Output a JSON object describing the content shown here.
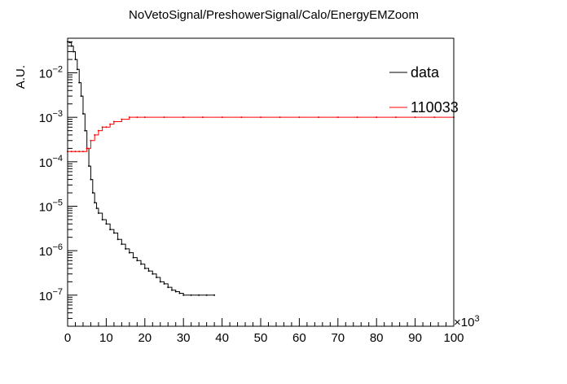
{
  "chart_data": {
    "type": "line",
    "title": "NoVetoSignal/PreshowerSignal/Calo/EnergyEMZoom",
    "ylabel": "A.U.",
    "xlabel": "",
    "x_multiplier_label": "×10",
    "x_multiplier_exp": "3",
    "xlim": [
      0,
      100000
    ],
    "ylim": [
      2e-08,
      0.06
    ],
    "yscale": "log",
    "grid": false,
    "legend_position": "top-right",
    "x_ticks": [
      {
        "value": 0,
        "label": "0"
      },
      {
        "value": 10000,
        "label": "10"
      },
      {
        "value": 20000,
        "label": "20"
      },
      {
        "value": 30000,
        "label": "30"
      },
      {
        "value": 40000,
        "label": "40"
      },
      {
        "value": 50000,
        "label": "50"
      },
      {
        "value": 60000,
        "label": "60"
      },
      {
        "value": 70000,
        "label": "70"
      },
      {
        "value": 80000,
        "label": "80"
      },
      {
        "value": 90000,
        "label": "90"
      },
      {
        "value": 100000,
        "label": "100"
      }
    ],
    "y_ticks": [
      {
        "value": 1e-07,
        "base": "10",
        "exp": "−7"
      },
      {
        "value": 1e-06,
        "base": "10",
        "exp": "−6"
      },
      {
        "value": 1e-05,
        "base": "10",
        "exp": "−5"
      },
      {
        "value": 0.0001,
        "base": "10",
        "exp": "−4"
      },
      {
        "value": 0.001,
        "base": "10",
        "exp": "−3"
      },
      {
        "value": 0.01,
        "base": "10",
        "exp": "−2"
      }
    ],
    "series": [
      {
        "name": "data",
        "color": "#000000",
        "x": [
          0,
          500,
          1000,
          1500,
          2000,
          2500,
          3000,
          3500,
          4000,
          4500,
          5000,
          5500,
          6000,
          6500,
          7000,
          7500,
          8000,
          9000,
          10000,
          11000,
          12000,
          13000,
          14000,
          15000,
          16000,
          17000,
          18000,
          19000,
          20000,
          21000,
          22000,
          23000,
          24000,
          25000,
          26000,
          27000,
          28000,
          29000,
          30000,
          32000,
          34000,
          36000,
          38000
        ],
        "values": [
          0.05,
          0.048,
          0.04,
          0.03,
          0.02,
          0.012,
          0.006,
          0.003,
          0.0012,
          0.0005,
          0.0002,
          8e-05,
          4e-05,
          2e-05,
          1.2e-05,
          9e-06,
          7e-06,
          5e-06,
          4e-06,
          3e-06,
          2.5e-06,
          1.8e-06,
          1.4e-06,
          1.1e-06,
          9e-07,
          7e-07,
          6e-07,
          5e-07,
          4e-07,
          3.5e-07,
          3e-07,
          2.5e-07,
          2e-07,
          1.8e-07,
          1.5e-07,
          1.3e-07,
          1.2e-07,
          1.1e-07,
          1e-07,
          1e-07,
          1e-07,
          1e-07,
          1e-07
        ]
      },
      {
        "name": "110033",
        "color": "#ff0000",
        "x": [
          0,
          1000,
          2000,
          3000,
          4000,
          5000,
          6000,
          7000,
          8000,
          9000,
          10000,
          11000,
          12000,
          14000,
          16000,
          18000,
          20000,
          25000,
          30000,
          35000,
          40000,
          45000,
          50000,
          55000,
          60000,
          65000,
          70000,
          75000,
          80000,
          85000,
          90000,
          95000,
          100000
        ],
        "values": [
          0.00017,
          0.00017,
          0.00017,
          0.00017,
          0.00017,
          0.0002,
          0.0003,
          0.0004,
          0.0005,
          0.0006,
          0.0006,
          0.0007,
          0.0008,
          0.0009,
          0.001,
          0.001,
          0.001,
          0.001,
          0.001,
          0.001,
          0.001,
          0.001,
          0.001,
          0.001,
          0.001,
          0.001,
          0.001,
          0.001,
          0.001,
          0.001,
          0.001,
          0.001,
          0.001
        ]
      }
    ]
  }
}
